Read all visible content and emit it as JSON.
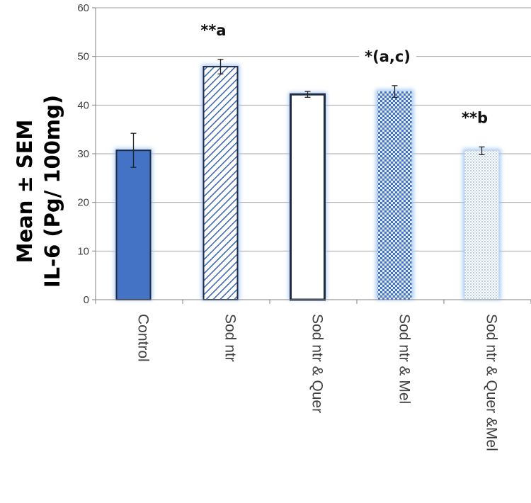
{
  "chart_data": {
    "type": "bar",
    "ylabel_lines": [
      "Mean ± SEM",
      "IL-6 (Pg/ 100mg)"
    ],
    "categories": [
      "Control",
      "Sod ntr",
      "Sod ntr & Quer",
      "Sod ntr & Mel",
      "Sod ntr & Quer &Mel"
    ],
    "values": [
      30.7,
      47.9,
      42.2,
      42.8,
      30.6
    ],
    "errors": [
      3.5,
      1.5,
      0.6,
      1.2,
      0.8
    ],
    "annotations": [
      "",
      "**a",
      "",
      "*(a,c)",
      "**b"
    ],
    "ylim": [
      0,
      60
    ],
    "yticks": [
      0,
      10,
      20,
      30,
      40,
      50,
      60
    ],
    "grid": true,
    "bar_styles": [
      "solid",
      "diagonal-hatch",
      "empty",
      "checker",
      "dotted"
    ],
    "colors": {
      "dark_blue": "#4472c4",
      "outline": "#1f2a44",
      "glow": "#9dc3f0",
      "grid": "#a6a6a6"
    }
  }
}
